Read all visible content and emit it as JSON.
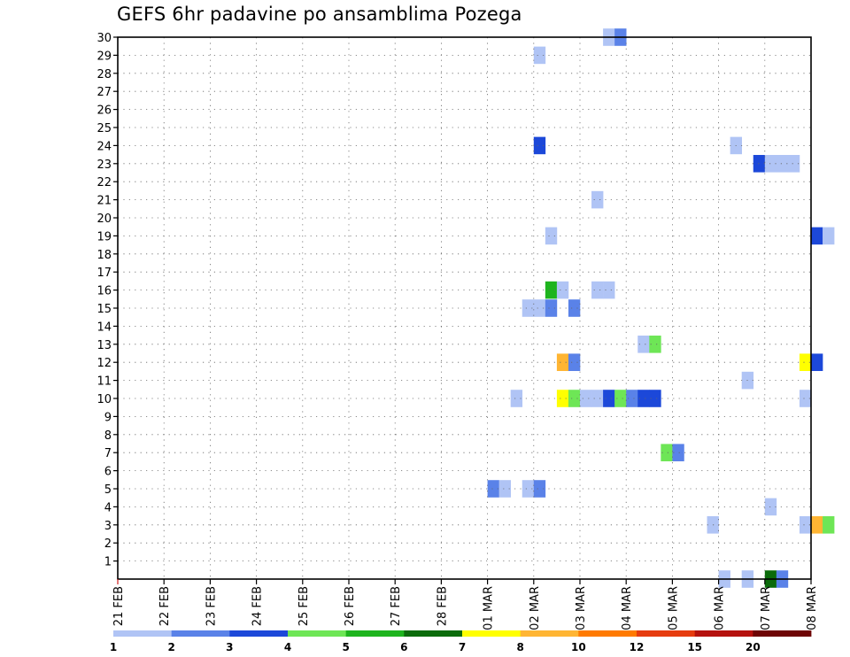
{
  "chart_data": {
    "type": "heatmap",
    "title": "GEFS 6hr padavine po ansamblima Pozega",
    "xlabel": "",
    "ylabel": "",
    "x_ticks": [
      "21 FEB",
      "22 FEB",
      "23 FEB",
      "24 FEB",
      "25 FEB",
      "26 FEB",
      "27 FEB",
      "28 FEB",
      "01 MAR",
      "02 MAR",
      "03 MAR",
      "04 MAR",
      "05 MAR",
      "06 MAR",
      "07 MAR",
      "08 MAR"
    ],
    "x_start": "21 FEB 00Z",
    "x_step_hours": 6,
    "y_ticks": [
      "1",
      "2",
      "3",
      "4",
      "5",
      "6",
      "7",
      "8",
      "9",
      "10",
      "11",
      "12",
      "13",
      "14",
      "15",
      "16",
      "17",
      "18",
      "19",
      "20",
      "21",
      "22",
      "23",
      "24",
      "25",
      "26",
      "27",
      "28",
      "29",
      "30"
    ],
    "ylim": [
      0,
      30
    ],
    "grid": true,
    "legend": {
      "placement": "bottom",
      "colors": [
        "#b0c4f5",
        "#5a82e8",
        "#1c48d9",
        "#6ee656",
        "#1eb41e",
        "#0b6b0b",
        "#ffff00",
        "#ffb533",
        "#ff7a00",
        "#e63c0f",
        "#b5120e",
        "#6e0505"
      ],
      "labels": [
        "1",
        "2",
        "3",
        "4",
        "5",
        "6",
        "7",
        "8",
        "10",
        "12",
        "15",
        "20"
      ]
    },
    "cells": [
      {
        "member": 30,
        "step": 42,
        "cls": 1
      },
      {
        "member": 30,
        "step": 43,
        "cls": 2
      },
      {
        "member": 29,
        "step": 36,
        "cls": 1
      },
      {
        "member": 24,
        "step": 36,
        "cls": 3
      },
      {
        "member": 24,
        "step": 53,
        "cls": 1
      },
      {
        "member": 23,
        "step": 55,
        "cls": 3
      },
      {
        "member": 23,
        "step": 56,
        "cls": 1
      },
      {
        "member": 23,
        "step": 57,
        "cls": 1
      },
      {
        "member": 23,
        "step": 58,
        "cls": 1
      },
      {
        "member": 21,
        "step": 41,
        "cls": 1
      },
      {
        "member": 19,
        "step": 37,
        "cls": 1
      },
      {
        "member": 19,
        "step": 60,
        "cls": 3
      },
      {
        "member": 19,
        "step": 61,
        "cls": 1
      },
      {
        "member": 16,
        "step": 37,
        "cls": 5
      },
      {
        "member": 16,
        "step": 38,
        "cls": 1
      },
      {
        "member": 16,
        "step": 41,
        "cls": 1
      },
      {
        "member": 16,
        "step": 42,
        "cls": 1
      },
      {
        "member": 15,
        "step": 35,
        "cls": 1
      },
      {
        "member": 15,
        "step": 36,
        "cls": 1
      },
      {
        "member": 15,
        "step": 37,
        "cls": 2
      },
      {
        "member": 15,
        "step": 39,
        "cls": 2
      },
      {
        "member": 13,
        "step": 45,
        "cls": 1
      },
      {
        "member": 13,
        "step": 46,
        "cls": 4
      },
      {
        "member": 12,
        "step": 38,
        "cls": 8
      },
      {
        "member": 12,
        "step": 39,
        "cls": 2
      },
      {
        "member": 12,
        "step": 59,
        "cls": 7
      },
      {
        "member": 12,
        "step": 60,
        "cls": 3
      },
      {
        "member": 11,
        "step": 54,
        "cls": 1
      },
      {
        "member": 10,
        "step": 34,
        "cls": 1
      },
      {
        "member": 10,
        "step": 38,
        "cls": 7
      },
      {
        "member": 10,
        "step": 39,
        "cls": 4
      },
      {
        "member": 10,
        "step": 40,
        "cls": 1
      },
      {
        "member": 10,
        "step": 41,
        "cls": 1
      },
      {
        "member": 10,
        "step": 42,
        "cls": 3
      },
      {
        "member": 10,
        "step": 43,
        "cls": 4
      },
      {
        "member": 10,
        "step": 44,
        "cls": 2
      },
      {
        "member": 10,
        "step": 45,
        "cls": 3
      },
      {
        "member": 10,
        "step": 46,
        "cls": 3
      },
      {
        "member": 10,
        "step": 59,
        "cls": 1
      },
      {
        "member": 7,
        "step": 47,
        "cls": 4
      },
      {
        "member": 7,
        "step": 48,
        "cls": 2
      },
      {
        "member": 5,
        "step": 32,
        "cls": 2
      },
      {
        "member": 5,
        "step": 33,
        "cls": 1
      },
      {
        "member": 5,
        "step": 35,
        "cls": 1
      },
      {
        "member": 5,
        "step": 36,
        "cls": 2
      },
      {
        "member": 4,
        "step": 56,
        "cls": 1
      },
      {
        "member": 3,
        "step": 51,
        "cls": 1
      },
      {
        "member": 3,
        "step": 59,
        "cls": 1
      },
      {
        "member": 3,
        "step": 60,
        "cls": 8
      },
      {
        "member": 3,
        "step": 61,
        "cls": 4
      },
      {
        "member": 0,
        "step": 52,
        "cls": 1
      },
      {
        "member": 0,
        "step": 54,
        "cls": 1
      },
      {
        "member": 0,
        "step": 56,
        "cls": 6
      },
      {
        "member": 0,
        "step": 57,
        "cls": 2
      }
    ]
  }
}
